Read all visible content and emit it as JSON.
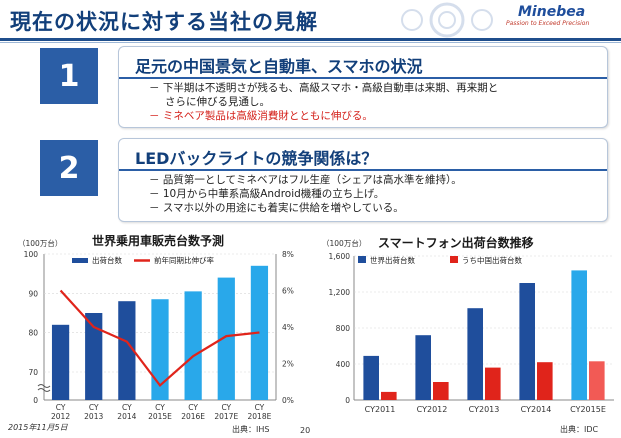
{
  "header": {
    "title": "現在の状況に対する当社の見解",
    "logo": "Minebea",
    "tagline": "Passion to Exceed Precision"
  },
  "points": [
    {
      "number": "1",
      "heading": "足元の中国景気と自動車、スマホの状況",
      "bullets": [
        {
          "text": "－ 下半期は不透明さが残るも、高級スマホ・高級自動車は来期、再来期と",
          "red": false
        },
        {
          "text": "さらに伸びる見通し。",
          "red": false
        },
        {
          "text": "－ ミネベア製品は高級消費財とともに伸びる。",
          "red": true
        }
      ]
    },
    {
      "number": "2",
      "heading": "LEDバックライトの競争関係は？",
      "bullets": [
        {
          "text": "－ 品質第一としてミネベアはフル生産（シェアは高水準を維持）。",
          "red": false
        },
        {
          "text": "－ 10月から中華系高級Android機種の立ち上げ。",
          "red": false
        },
        {
          "text": "－ スマホ以外の用途にも着実に供給を増やしている。",
          "red": false
        }
      ]
    }
  ],
  "chart_data": [
    {
      "type": "bar",
      "title": "世界乗用車販売台数予測",
      "unit_label": "（100万台）",
      "categories": [
        "CY\n2012",
        "CY\n2013",
        "CY\n2014",
        "CY\n2015E",
        "CY\n2016E",
        "CY\n2017E",
        "CY\n2018E"
      ],
      "series": [
        {
          "name": "出荷台数",
          "axis": "left",
          "values": [
            82,
            85,
            88,
            88.5,
            90.5,
            94,
            97
          ],
          "colors": [
            "#1f4e9c",
            "#1f4e9c",
            "#1f4e9c",
            "#29a8ea",
            "#29a8ea",
            "#29a8ea",
            "#29a8ea"
          ]
        },
        {
          "name": "前年同期比伸び率",
          "axis": "right",
          "type": "line",
          "values": [
            6.0,
            4.0,
            3.2,
            0.8,
            2.4,
            3.5,
            3.7
          ],
          "color": "#e0241b"
        }
      ],
      "ylim_left": [
        0,
        100
      ],
      "yticks_left": [
        "0",
        "70",
        "80",
        "90",
        "100"
      ],
      "ylim_right": [
        0,
        8
      ],
      "yticks_right": [
        "0%",
        "2%",
        "4%",
        "6%",
        "8%"
      ],
      "source": "出典：IHS"
    },
    {
      "type": "bar",
      "title": "スマートフォン出荷台数推移",
      "unit_label": "（100万台）",
      "categories": [
        "CY2011",
        "CY2012",
        "CY2013",
        "CY2014",
        "CY2015E"
      ],
      "series": [
        {
          "name": "世界出荷台数",
          "values": [
            490,
            720,
            1020,
            1300,
            1440
          ],
          "colors": [
            "#1f4e9c",
            "#1f4e9c",
            "#1f4e9c",
            "#1f4e9c",
            "#29a8ea"
          ]
        },
        {
          "name": "うち中国出荷台数",
          "values": [
            90,
            200,
            360,
            420,
            430
          ],
          "colors": [
            "#e0241b",
            "#e0241b",
            "#e0241b",
            "#e0241b",
            "#f25a55"
          ]
        }
      ],
      "ylim": [
        0,
        1600
      ],
      "yticks": [
        "0",
        "400",
        "800",
        "1,200",
        "1,600"
      ],
      "source": "出典：IDC"
    }
  ],
  "footer": {
    "date": "2015年11月5日",
    "page": "20"
  },
  "colors": {
    "navy": "#1f4e9c",
    "cyan": "#29a8ea",
    "red": "#e0241b"
  }
}
